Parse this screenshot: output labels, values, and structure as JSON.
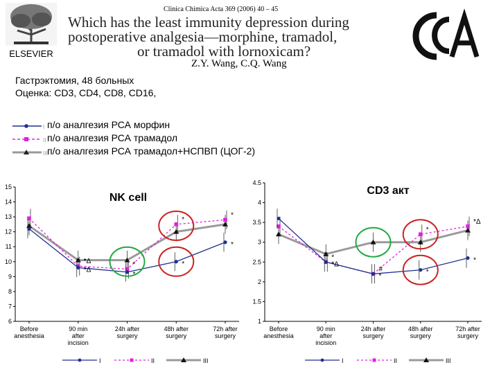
{
  "header": {
    "publisher": "ELSEVIER",
    "journal_ref": "Clinica Chimica Acta 369 (2006) 40 – 45",
    "title_lines": [
      "Which has the least immunity depression during",
      "postoperative analgesia—morphine, tramadol,",
      "or tramadol with lornoxicam?"
    ],
    "authors": "Z.Y. Wang, C.Q. Wang",
    "journal_logo_text": "CCA"
  },
  "info": {
    "line1": "Гастрэктомия, 48 больных",
    "line2": "Оценка:  CD3, CD4, CD8, CD16,"
  },
  "legend": [
    {
      "key": "I",
      "label": "п/о аналгезия РСА морфин",
      "color": "#1f2f8f",
      "marker": "circle",
      "dash": "solid"
    },
    {
      "key": "II",
      "label": "п/о аналгезия РСА трамадол",
      "color": "#e020e0",
      "marker": "square",
      "dash": "dashed"
    },
    {
      "key": "III",
      "label": "п/о аналгезия РСА трамадол+НСПВП (ЦОГ-2)",
      "color": "#222222",
      "marker": "triangle",
      "dash": "solid-gray"
    }
  ],
  "chart_data": [
    {
      "type": "line",
      "title": "NK cell",
      "categories": [
        "Before anesthesia",
        "90 min after incision",
        "24h after surgery",
        "48h after surgery",
        "72h after surgery"
      ],
      "ylim": [
        6,
        15
      ],
      "yticks": [
        6,
        7,
        8,
        9,
        10,
        11,
        12,
        13,
        14,
        15
      ],
      "series": [
        {
          "name": "I",
          "values": [
            12.2,
            9.6,
            9.3,
            10.0,
            11.3
          ]
        },
        {
          "name": "II",
          "values": [
            12.9,
            9.7,
            9.5,
            12.5,
            12.8
          ]
        },
        {
          "name": "III",
          "values": [
            12.4,
            10.1,
            10.1,
            12.0,
            12.5
          ]
        }
      ],
      "annotations": [
        "*",
        "*",
        "*",
        "*",
        "*",
        "*",
        "*",
        "*",
        "*Δ",
        "*Δ"
      ],
      "circles": [
        {
          "category": "24h after surgery",
          "value": 10.0,
          "color": "#22aa44"
        },
        {
          "category": "48h after surgery",
          "value": 12.4,
          "color": "#cc2222"
        },
        {
          "category": "48h after surgery",
          "value": 10.0,
          "color": "#cc2222"
        }
      ],
      "legend_bottom": [
        "I",
        "II",
        "III"
      ]
    },
    {
      "type": "line",
      "title": "CD3 акт",
      "categories": [
        "Before anesthesia",
        "90 min after incision",
        "24h after surgery",
        "48h after surgery",
        "72h after surgery"
      ],
      "ylim": [
        1,
        4.5
      ],
      "yticks": [
        1,
        1.5,
        2,
        2.5,
        3,
        3.5,
        4,
        4.5
      ],
      "series": [
        {
          "name": "I",
          "values": [
            3.6,
            2.5,
            2.2,
            2.3,
            2.6
          ]
        },
        {
          "name": "II",
          "values": [
            3.4,
            2.5,
            2.2,
            3.2,
            3.4
          ]
        },
        {
          "name": "III",
          "values": [
            3.2,
            2.7,
            3.0,
            3.0,
            3.3
          ]
        }
      ],
      "annotations": [
        "*",
        "*",
        "*",
        "#",
        "*",
        "*",
        "*",
        "*Δ",
        "*Δ"
      ],
      "circles": [
        {
          "category": "24h after surgery",
          "value": 3.0,
          "color": "#22aa44"
        },
        {
          "category": "48h after surgery",
          "value": 3.2,
          "color": "#cc2222"
        },
        {
          "category": "48h after surgery",
          "value": 2.3,
          "color": "#cc2222"
        }
      ],
      "legend_bottom": [
        "I",
        "II",
        "III"
      ]
    }
  ]
}
